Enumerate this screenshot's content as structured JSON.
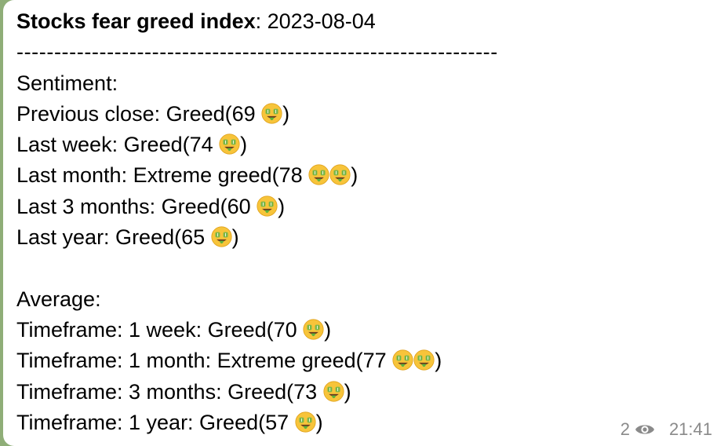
{
  "message": {
    "title_bold": "Stocks fear greed index",
    "title_rest": ": 2023-08-04",
    "separator": "----------------------------------------------------------------",
    "sentiment_header": "Sentiment:",
    "sentiment_items": [
      {
        "text": "Previous close: Greed(69 ",
        "emoji_count": 1
      },
      {
        "text": "Last week: Greed(74 ",
        "emoji_count": 1
      },
      {
        "text": "Last month: Extreme greed(78 ",
        "emoji_count": 2
      },
      {
        "text": "Last 3 months: Greed(60 ",
        "emoji_count": 1
      },
      {
        "text": "Last year: Greed(65 ",
        "emoji_count": 1
      }
    ],
    "average_header": "Average:",
    "average_items": [
      {
        "text": "Timeframe: 1 week: Greed(70 ",
        "emoji_count": 1
      },
      {
        "text": "Timeframe: 1 month: Extreme greed(77 ",
        "emoji_count": 2
      },
      {
        "text": "Timeframe: 3 months: Greed(73 ",
        "emoji_count": 1
      },
      {
        "text": "Timeframe: 1 year: Greed(57 ",
        "emoji_count": 1
      }
    ],
    "close_paren": ")",
    "emoji_icon": "money-mouth-face-icon"
  },
  "meta": {
    "views": "2",
    "time": "21:41",
    "views_icon": "eye-icon"
  }
}
